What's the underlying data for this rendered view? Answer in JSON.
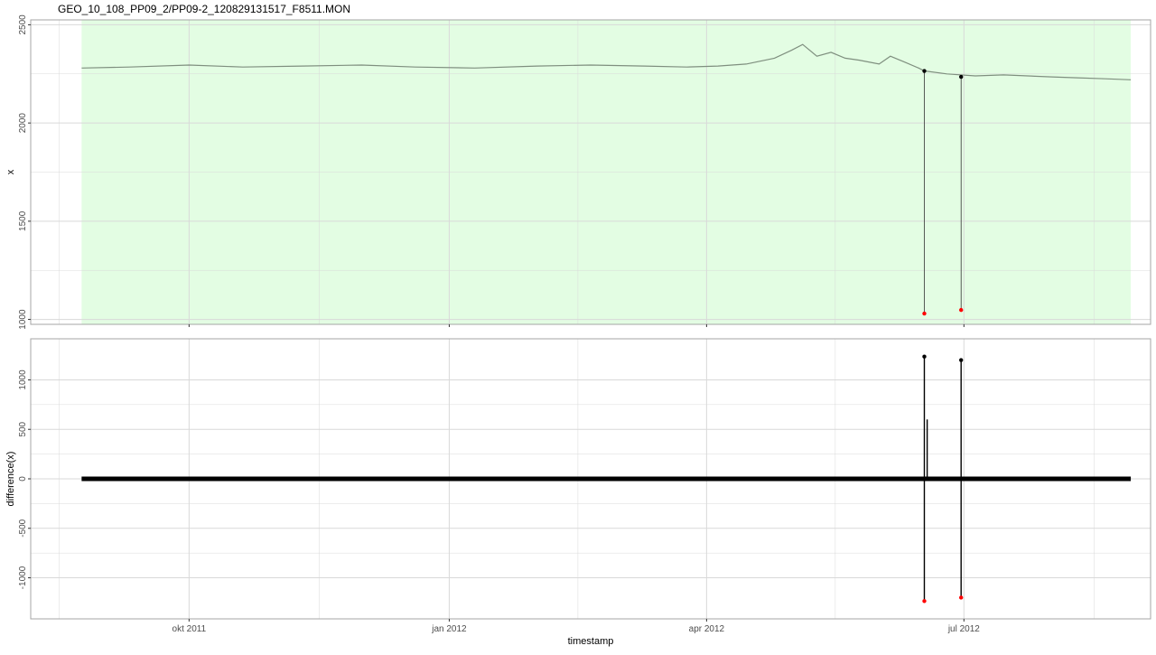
{
  "title": "GEO_10_108_PP09_2/PP09-2_120829131517_F8511.MON",
  "colors": {
    "highlight_band": "#e3fde3",
    "series_line": "#7f8f7f",
    "outlier_point": "#ff0000",
    "point": "#000000",
    "grid": "#d9d9d9",
    "panel_border": "#a6a6a6"
  },
  "chart_data": [
    {
      "type": "line",
      "panel": "top",
      "ylabel": "x",
      "xlabel": "",
      "y_ticks": [
        1000,
        1500,
        2000,
        2500
      ],
      "ylim": [
        975,
        2525
      ],
      "xlim": [
        "2011-08-06",
        "2012-09-05"
      ],
      "x_ticks": [
        "2011-10-01",
        "2012-01-01",
        "2012-04-01",
        "2012-07-01"
      ],
      "x_tick_labels": [
        "okt 2011",
        "jan 2012",
        "apr 2012",
        "jul 2012"
      ],
      "highlight_range": [
        "2011-08-24",
        "2012-08-29"
      ],
      "series": [
        {
          "x": [
            "2011-08-24",
            "2011-09-10",
            "2011-10-01",
            "2011-10-20",
            "2011-11-10",
            "2011-12-01",
            "2011-12-20",
            "2012-01-10",
            "2012-02-01",
            "2012-02-20",
            "2012-03-10",
            "2012-03-25",
            "2012-04-05",
            "2012-04-15",
            "2012-04-25",
            "2012-05-01",
            "2012-05-05",
            "2012-05-10",
            "2012-05-15",
            "2012-05-20",
            "2012-05-25",
            "2012-06-01",
            "2012-06-05",
            "2012-06-10",
            "2012-06-15",
            "2012-06-17",
            "2012-06-25",
            "2012-07-05",
            "2012-07-15",
            "2012-08-01",
            "2012-08-10",
            "2012-08-20",
            "2012-08-29"
          ],
          "y": [
            2280,
            2285,
            2295,
            2285,
            2290,
            2295,
            2285,
            2280,
            2290,
            2295,
            2290,
            2285,
            2290,
            2300,
            2330,
            2370,
            2400,
            2340,
            2360,
            2330,
            2320,
            2300,
            2340,
            2310,
            2280,
            2265,
            2250,
            2240,
            2245,
            2235,
            2230,
            2225,
            2220
          ]
        }
      ],
      "marked_points": [
        {
          "x": "2012-06-17",
          "y": 2265
        },
        {
          "x": "2012-06-30",
          "y": 2235
        }
      ],
      "outliers": [
        {
          "x": "2012-06-17",
          "y": 1030
        },
        {
          "x": "2012-06-30",
          "y": 1048
        }
      ],
      "grid": true
    },
    {
      "type": "line",
      "panel": "bottom",
      "ylabel": "difference(x)",
      "xlabel": "timestamp",
      "y_ticks": [
        -1000,
        -500,
        0,
        500,
        1000
      ],
      "ylim": [
        -1415,
        1415
      ],
      "xlim": [
        "2011-08-06",
        "2012-09-05"
      ],
      "x_ticks": [
        "2011-10-01",
        "2012-01-01",
        "2012-04-01",
        "2012-07-01"
      ],
      "x_tick_labels": [
        "okt 2011",
        "jan 2012",
        "apr 2012",
        "jul 2012"
      ],
      "baseline": {
        "range": [
          "2011-08-24",
          "2012-08-29"
        ],
        "y": 0
      },
      "spikes": [
        {
          "x": "2012-06-17",
          "from": -1235,
          "to": 1235
        },
        {
          "x": "2012-06-18",
          "from": 0,
          "to": 600
        },
        {
          "x": "2012-06-30",
          "from": -1200,
          "to": 1200
        }
      ],
      "marked_points": [
        {
          "x": "2012-06-17",
          "y": 1235
        },
        {
          "x": "2012-06-30",
          "y": 1200
        }
      ],
      "outliers": [
        {
          "x": "2012-06-17",
          "y": -1235
        },
        {
          "x": "2012-06-30",
          "y": -1200
        }
      ],
      "grid": true
    }
  ]
}
